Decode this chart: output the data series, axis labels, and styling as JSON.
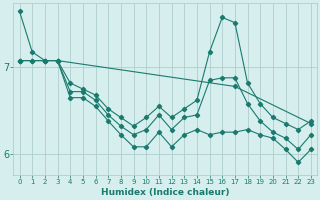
{
  "xlabel": "Humidex (Indice chaleur)",
  "ylabel": "",
  "background_color": "#d6eeee",
  "grid_color": "#b0cecf",
  "line_color": "#1a7a6e",
  "xlim": [
    -0.5,
    23.5
  ],
  "ylim": [
    5.75,
    7.75
  ],
  "yticks": [
    6,
    7
  ],
  "xticks": [
    0,
    1,
    2,
    3,
    4,
    5,
    6,
    7,
    8,
    9,
    10,
    11,
    12,
    13,
    14,
    15,
    16,
    17,
    18,
    19,
    20,
    21,
    22,
    23
  ],
  "lines": [
    {
      "x": [
        0,
        1,
        2,
        3,
        4,
        5,
        6,
        7,
        8,
        9,
        10,
        11,
        12,
        13,
        14,
        15,
        16,
        17,
        18,
        19,
        20,
        21,
        22,
        23
      ],
      "y": [
        7.65,
        7.18,
        7.08,
        7.08,
        6.82,
        6.75,
        6.68,
        6.52,
        6.42,
        6.32,
        6.42,
        6.55,
        6.42,
        6.52,
        6.62,
        7.18,
        7.58,
        7.52,
        6.82,
        6.58,
        6.42,
        6.35,
        6.28,
        6.38
      ]
    },
    {
      "x": [
        0,
        2,
        3,
        17,
        23
      ],
      "y": [
        7.08,
        7.08,
        7.08,
        6.78,
        6.35
      ]
    },
    {
      "x": [
        0,
        1,
        2,
        3,
        4,
        5,
        6,
        7,
        8,
        9,
        10,
        11,
        12,
        13,
        14,
        15,
        16,
        17,
        18,
        19,
        20,
        21,
        22,
        23
      ],
      "y": [
        7.08,
        7.08,
        7.08,
        7.08,
        6.72,
        6.72,
        6.62,
        6.45,
        6.32,
        6.22,
        6.28,
        6.45,
        6.28,
        6.42,
        6.45,
        6.85,
        6.88,
        6.88,
        6.58,
        6.38,
        6.25,
        6.18,
        6.05,
        6.22
      ]
    },
    {
      "x": [
        0,
        1,
        2,
        3,
        4,
        5,
        6,
        7,
        8,
        9,
        10,
        11,
        12,
        13,
        14,
        15,
        16,
        17,
        18,
        19,
        20,
        21,
        22,
        23
      ],
      "y": [
        7.08,
        7.08,
        7.08,
        7.08,
        6.65,
        6.65,
        6.55,
        6.38,
        6.22,
        6.08,
        6.08,
        6.25,
        6.08,
        6.22,
        6.28,
        6.22,
        6.25,
        6.25,
        6.28,
        6.22,
        6.18,
        6.05,
        5.9,
        6.05
      ]
    }
  ]
}
